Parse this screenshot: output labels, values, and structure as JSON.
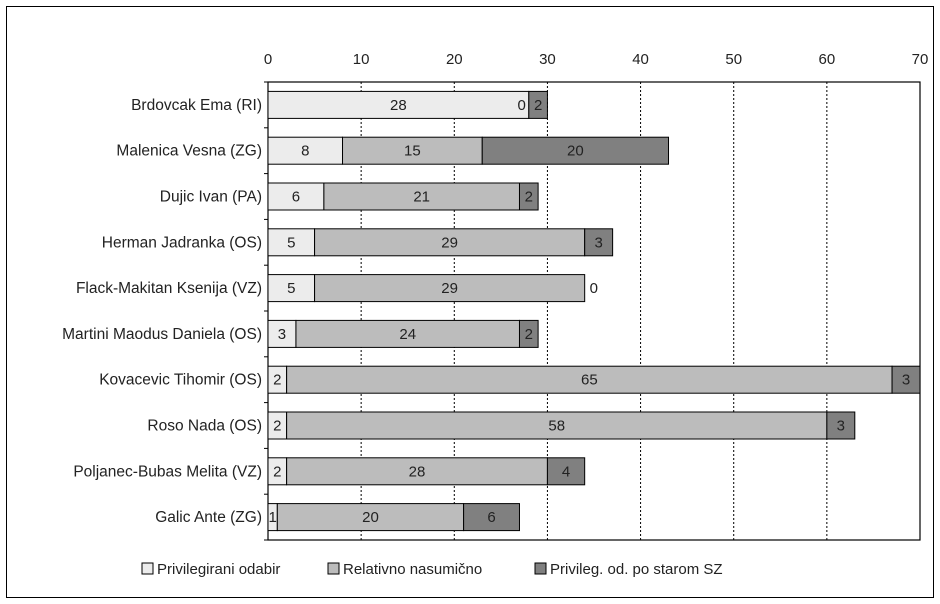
{
  "chart_data": {
    "type": "bar",
    "orientation": "horizontal",
    "stacked": true,
    "categories": [
      "Brdovcak Ema (RI)",
      "Malenica Vesna (ZG)",
      "Dujic Ivan (PA)",
      "Herman Jadranka (OS)",
      "Flack-Makitan Ksenija (VZ)",
      "Martini Maodus Daniela (OS)",
      "Kovacevic Tihomir (OS)",
      "Roso Nada (OS)",
      "Poljanec-Bubas Melita (VZ)",
      "Galic Ante (ZG)"
    ],
    "series": [
      {
        "name": "Privilegirani odabir",
        "color": "#ececec",
        "values": [
          28,
          8,
          6,
          5,
          5,
          3,
          2,
          2,
          2,
          1
        ]
      },
      {
        "name": "Relativno nasumično",
        "color": "#bcbcbc",
        "values": [
          0,
          15,
          21,
          29,
          29,
          24,
          65,
          58,
          28,
          20
        ]
      },
      {
        "name": "Privileg. od. po starom SZ",
        "color": "#808080",
        "values": [
          2,
          20,
          2,
          3,
          0,
          2,
          3,
          3,
          4,
          6
        ]
      }
    ],
    "data_labels": [
      [
        "28",
        "0",
        "2"
      ],
      [
        "8",
        "15",
        "20"
      ],
      [
        "6",
        "21",
        "2"
      ],
      [
        "5",
        "29",
        "3"
      ],
      [
        "5",
        "29",
        "0"
      ],
      [
        "3",
        "24",
        "2"
      ],
      [
        "2",
        "65",
        "3"
      ],
      [
        "2",
        "58",
        "3"
      ],
      [
        "2",
        "28",
        "4"
      ],
      [
        "1",
        "20",
        "6"
      ]
    ],
    "xlim": [
      0,
      70
    ],
    "xticks": [
      "0",
      "10",
      "20",
      "30",
      "40",
      "50",
      "60",
      "70"
    ],
    "xaxis_position": "top",
    "grid": "vertical dotted",
    "legend_position": "bottom"
  }
}
